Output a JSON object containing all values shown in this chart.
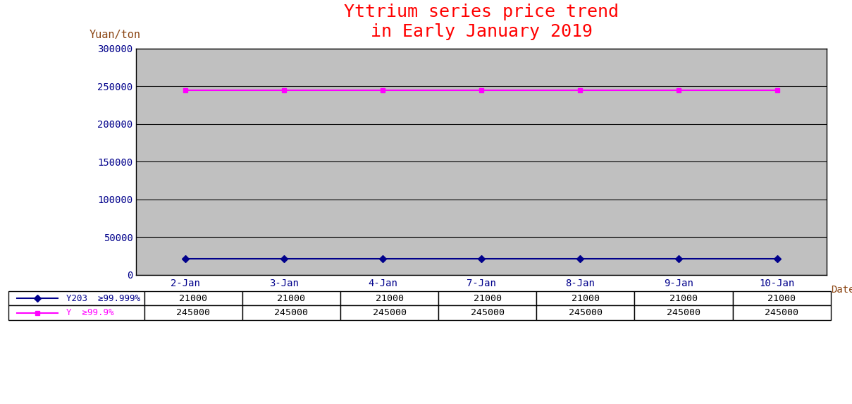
{
  "title": "Yttrium series price trend\nin Early January 2019",
  "title_color": "red",
  "title_fontsize": 18,
  "ylabel": "Yuan/ton",
  "ylabel_color": "#8B4513",
  "xlabel": "Date",
  "xlabel_color": "#8B4513",
  "dates": [
    "2-Jan",
    "3-Jan",
    "4-Jan",
    "7-Jan",
    "8-Jan",
    "9-Jan",
    "10-Jan"
  ],
  "tick_color": "#00008B",
  "series": [
    {
      "label": "Y203  ≥99.999%",
      "values": [
        21000,
        21000,
        21000,
        21000,
        21000,
        21000,
        21000
      ],
      "color": "#00008B",
      "marker": "D",
      "markersize": 5,
      "linewidth": 1.5
    },
    {
      "label": "Y  ≥99.9%",
      "values": [
        245000,
        245000,
        245000,
        245000,
        245000,
        245000,
        245000
      ],
      "color": "#FF00FF",
      "marker": "s",
      "markersize": 5,
      "linewidth": 1.5
    }
  ],
  "ylim": [
    0,
    300000
  ],
  "yticks": [
    0,
    50000,
    100000,
    150000,
    200000,
    250000,
    300000
  ],
  "plot_bg_color": "#C0C0C0",
  "fig_bg_color": "#FFFFFF",
  "grid_color": "#000000",
  "grid_linewidth": 0.8,
  "table_row_labels": [
    "Y203  ≥99.999%",
    "Y  ≥99.9%"
  ],
  "table_row_values": [
    [
      21000,
      21000,
      21000,
      21000,
      21000,
      21000,
      21000
    ],
    [
      245000,
      245000,
      245000,
      245000,
      245000,
      245000,
      245000
    ]
  ],
  "table_row_colors": [
    "#00008B",
    "#FF00FF"
  ]
}
